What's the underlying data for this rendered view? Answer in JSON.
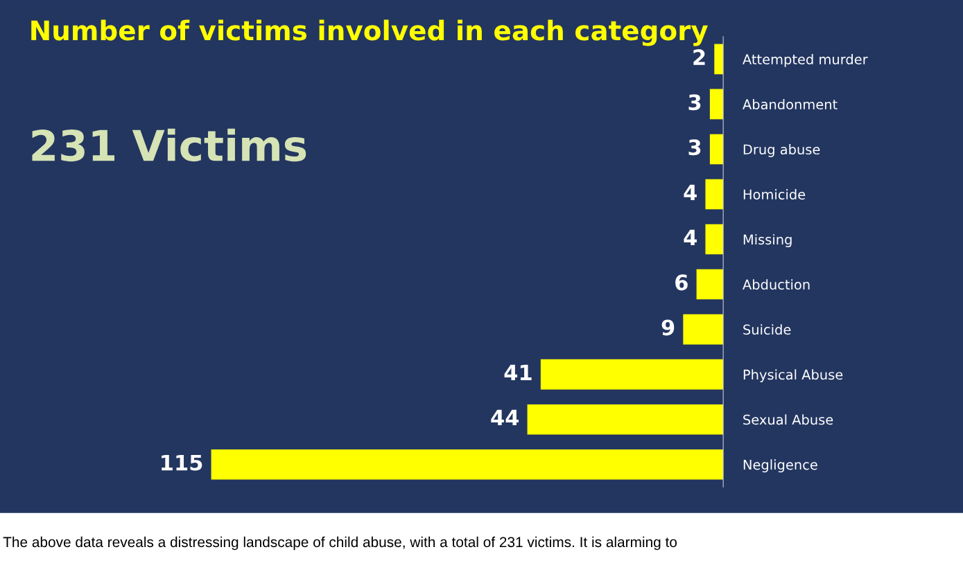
{
  "chart_data": {
    "type": "bar",
    "orientation": "horizontal",
    "title": "Number of victims involved in each category",
    "subtitle": "231 Victims",
    "categories": [
      "Attempted murder",
      "Abandonment",
      "Drug abuse",
      "Homicide",
      "Missing",
      "Abduction",
      "Suicide",
      "Physical Abuse",
      "Sexual Abuse",
      "Negligence"
    ],
    "values": [
      2,
      3,
      3,
      4,
      4,
      6,
      9,
      41,
      44,
      115
    ],
    "color": "#ffff00",
    "data_labels": true,
    "tick_labels": "y",
    "grid": false,
    "annotations": [
      "The above data reveals a distressing landscape of child abuse, with a total of 231 victims. It is alarming to"
    ]
  }
}
